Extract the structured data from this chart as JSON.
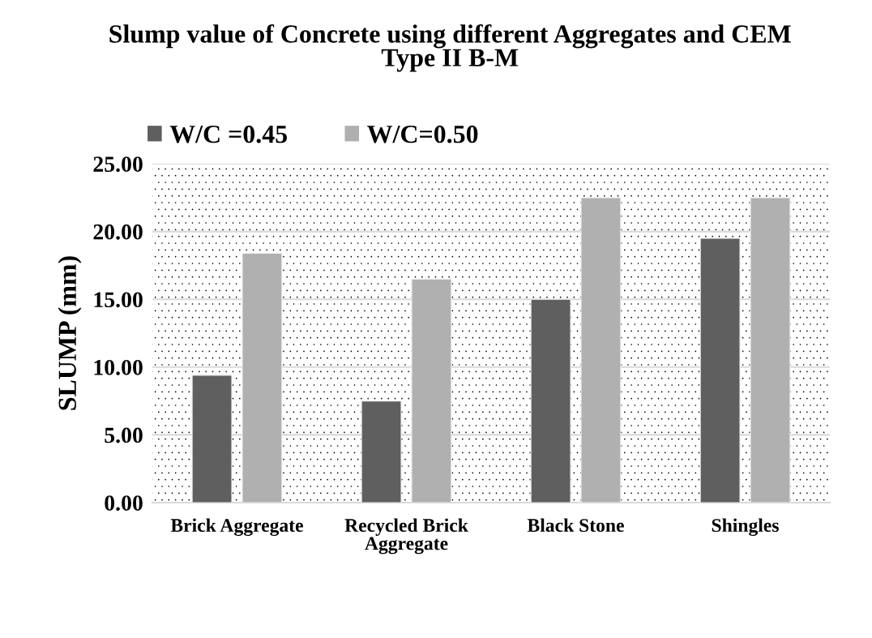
{
  "chart_data": {
    "type": "bar",
    "title": "Slump value of Concrete using different Aggregates and CEM\nType II B-M",
    "ylabel": "SLUMP (mm)",
    "categories": [
      "Brick Aggregate",
      "Recycled Brick\nAggregate",
      "Black Stone",
      "Shingles"
    ],
    "series": [
      {
        "name": "W/C =0.45",
        "color": "#5f5f5f",
        "values": [
          9.4,
          7.5,
          15.0,
          19.5
        ]
      },
      {
        "name": "W/C=0.50",
        "color": "#b0b0b0",
        "values": [
          18.4,
          16.5,
          22.5,
          22.5
        ]
      }
    ],
    "ylim": [
      0,
      25
    ],
    "yticks": [
      {
        "value": 0,
        "label": "0.00"
      },
      {
        "value": 5,
        "label": "5.00"
      },
      {
        "value": 10,
        "label": "10.00"
      },
      {
        "value": 15,
        "label": "15.00"
      },
      {
        "value": 20,
        "label": "20.00"
      },
      {
        "value": 25,
        "label": "25.00"
      }
    ],
    "grid": "y",
    "legend": "top left"
  }
}
